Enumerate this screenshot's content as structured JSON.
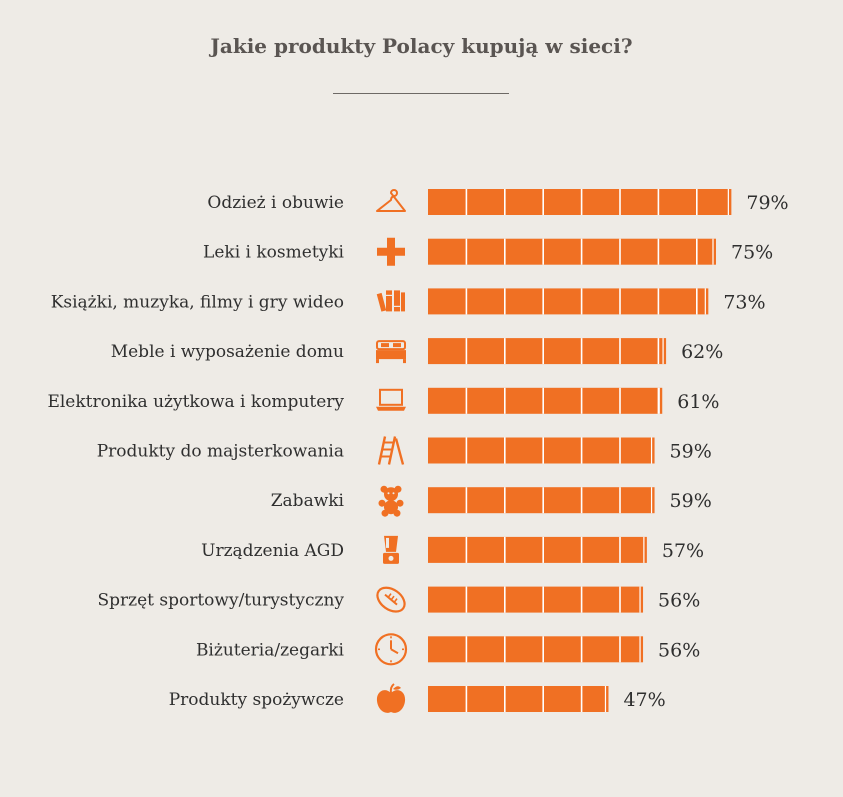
{
  "colors": {
    "background": "#eeebe6",
    "bar": "#f07023",
    "segment_line": "#ffffff",
    "icon": "#f07023"
  },
  "chart_data": {
    "type": "bar",
    "orientation": "horizontal",
    "title": "Jakie produkty Polacy kupują w sieci?",
    "xlim": [
      0,
      100
    ],
    "segment_step": 10,
    "grid": false,
    "legend": "none",
    "value_suffix": "%",
    "categories": [
      "Odzież i obuwie",
      "Leki i kosmetyki",
      "Książki, muzyka, filmy i gry wideo",
      "Meble i wyposażenie domu",
      "Elektronika użytkowa i komputery",
      "Produkty do majsterkowania",
      "Zabawki",
      "Urządzenia AGD",
      "Sprzęt sportowy/turystyczny",
      "Biżuteria/zegarki",
      "Produkty spożywcze"
    ],
    "values": [
      79,
      75,
      73,
      62,
      61,
      59,
      59,
      57,
      56,
      56,
      47
    ],
    "value_labels": [
      "79%",
      "75%",
      "73%",
      "62%",
      "61%",
      "59%",
      "59%",
      "57%",
      "56%",
      "56%",
      "47%"
    ],
    "icons": [
      "hanger-icon",
      "cross-icon",
      "books-icon",
      "bed-icon",
      "laptop-icon",
      "ladder-icon",
      "teddy-bear-icon",
      "blender-icon",
      "football-icon",
      "clock-icon",
      "apple-icon"
    ]
  }
}
